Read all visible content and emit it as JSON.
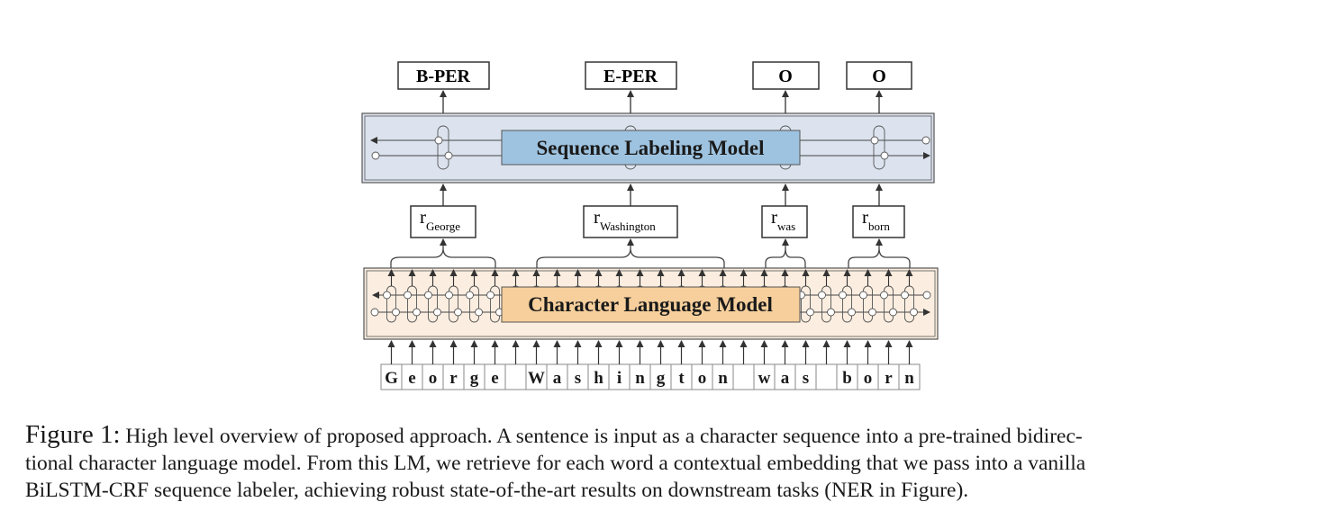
{
  "labels": [
    "B-PER",
    "E-PER",
    "O",
    "O"
  ],
  "sequence_model_label": "Sequence Labeling Model",
  "char_model_label": "Character Language Model",
  "embeddings": [
    {
      "symbol": "r",
      "sub": "George"
    },
    {
      "symbol": "r",
      "sub": "Washington"
    },
    {
      "symbol": "r",
      "sub": "was"
    },
    {
      "symbol": "r",
      "sub": "born"
    }
  ],
  "characters": [
    "G",
    "e",
    "o",
    "r",
    "g",
    "e",
    " ",
    "W",
    "a",
    "s",
    "h",
    "i",
    "n",
    "g",
    "t",
    "o",
    "n",
    " ",
    "w",
    "a",
    "s",
    " ",
    "b",
    "o",
    "r",
    "n"
  ],
  "colors": {
    "seq_box_fill": "#dce3ee",
    "seq_label_fill": "#9ec3e0",
    "char_box_fill": "#fbeee0",
    "char_label_fill": "#f6cf9c",
    "line": "#333333"
  },
  "caption": {
    "lead": "Figure 1:",
    "lines": [
      "High level overview of proposed approach. A sentence is input as a character sequence into a pre-trained bidirec-",
      "tional character language model. From this LM, we retrieve for each word a contextual embedding that we pass into a vanilla",
      "BiLSTM-CRF sequence labeler, achieving robust state-of-the-art results on downstream tasks (NER in Figure)."
    ]
  }
}
